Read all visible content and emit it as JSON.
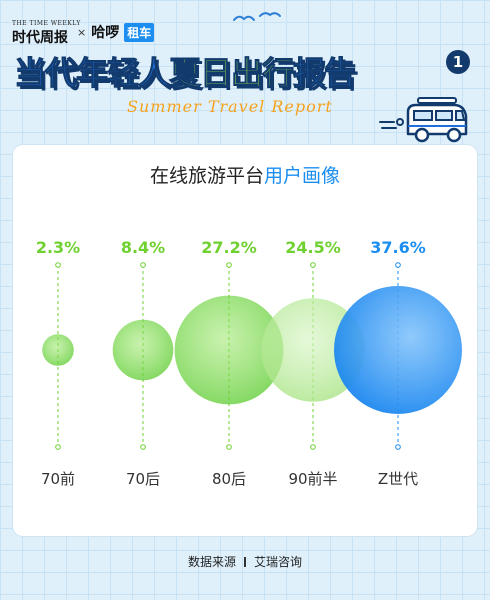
{
  "header": {
    "brand_timeweekly_en": "THE TIME WEEKLY",
    "brand_timeweekly_cn": "时代周报",
    "brand_times": "×",
    "brand_haluo": "哈啰",
    "brand_zuche": "租车",
    "title_part1": "当代年轻人",
    "title_highlight": "夏日出行",
    "title_part2": "报告",
    "badge": "1",
    "subtitle": "Summer Travel Report"
  },
  "card": {
    "title_plain": "在线旅游平台",
    "title_accent": "用户画像"
  },
  "chart_data": {
    "type": "bubble",
    "title": "在线旅游平台用户画像",
    "categories": [
      "70前",
      "70后",
      "80后",
      "90前半",
      "Z世代"
    ],
    "values": [
      2.3,
      8.4,
      27.2,
      24.5,
      37.6
    ],
    "value_labels": [
      "2.3%",
      "8.4%",
      "27.2%",
      "24.5%",
      "37.6%"
    ],
    "unit": "%",
    "colors": [
      "#6fd12f",
      "#6fd12f",
      "#6fd12f",
      "#6fd12f",
      "#1b8ef0"
    ]
  },
  "footer": {
    "source_label": "数据来源",
    "source_name": "艾瑞咨询"
  },
  "colors": {
    "background": "#dff0fb",
    "title_blue": "#1e6fd9",
    "title_green": "#8bd448",
    "navy": "#123a6d",
    "orange": "#f6a21c",
    "z_blue": "#1b8ef0"
  }
}
